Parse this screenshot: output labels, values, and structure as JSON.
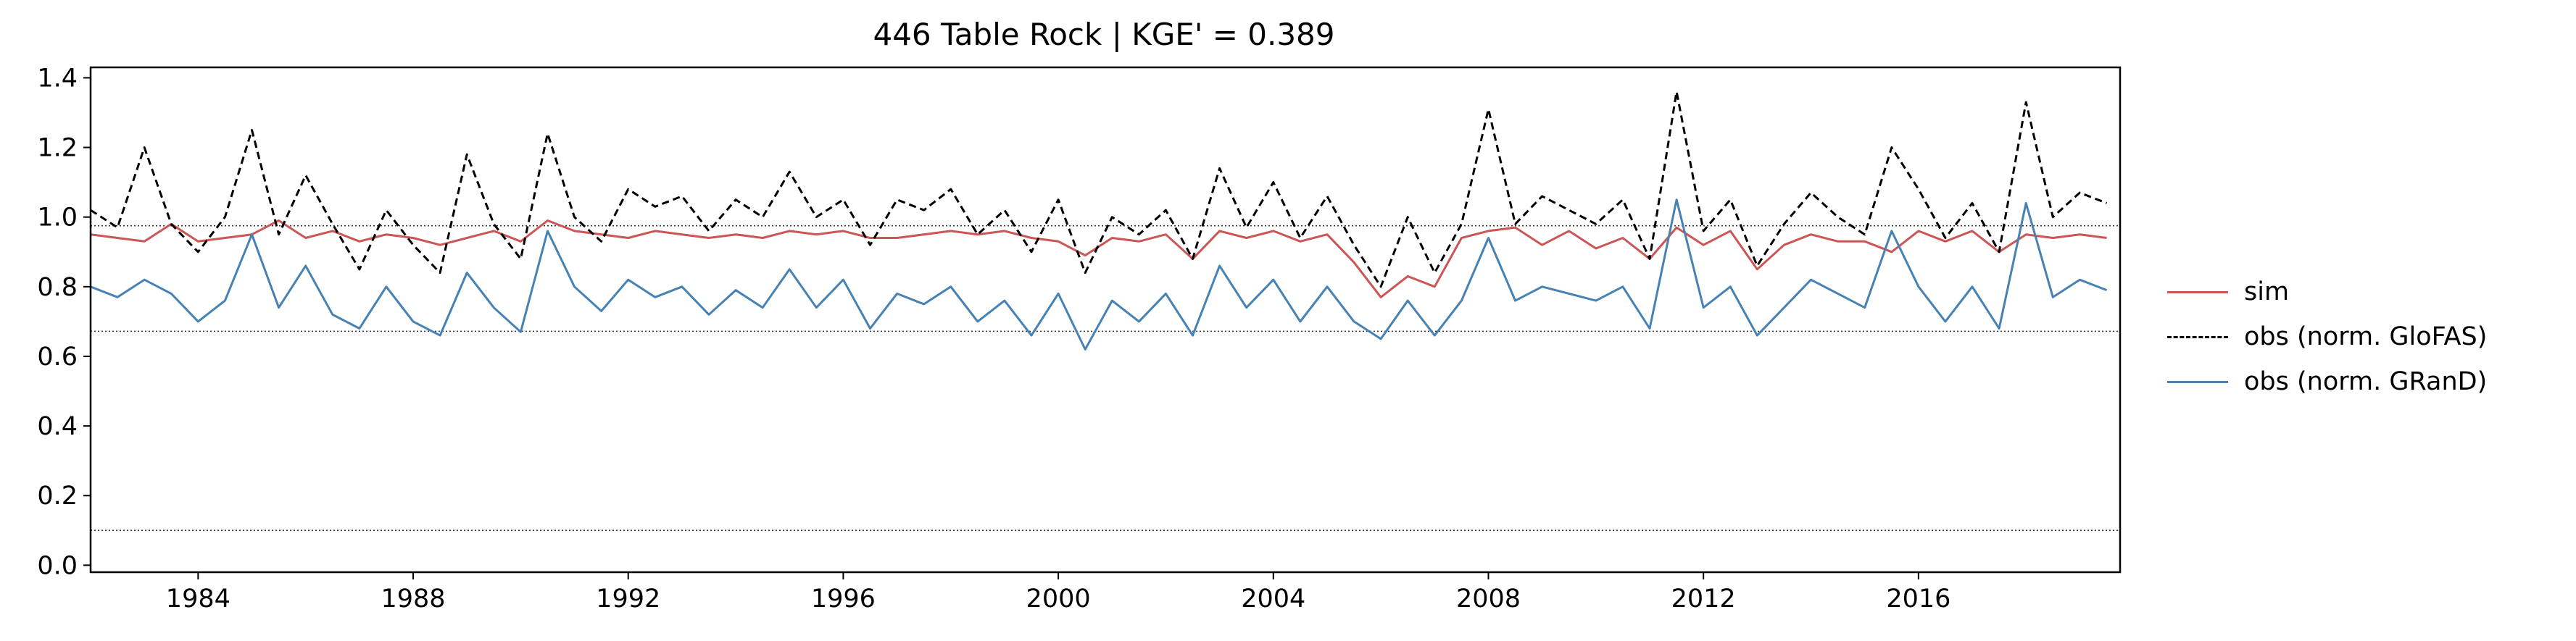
{
  "chart_data": {
    "type": "line",
    "title": "446  Table Rock | KGE' = 0.389",
    "xlabel": "",
    "ylabel": "",
    "xlim": [
      1982.0,
      2019.75
    ],
    "ylim": [
      -0.02,
      1.43
    ],
    "x_ticks": [
      "1984",
      "1988",
      "1992",
      "1996",
      "2000",
      "2004",
      "2008",
      "2012",
      "2016"
    ],
    "y_ticks": [
      "0.0",
      "0.2",
      "0.4",
      "0.6",
      "0.8",
      "1.0",
      "1.2",
      "1.4"
    ],
    "grid": false,
    "legend_position": "right, outside plot",
    "reference_lines": [
      0.975,
      0.672,
      0.1
    ],
    "series": [
      {
        "name": "sim",
        "color": "#cc5555",
        "style": "solid",
        "x": [
          1982.0,
          1982.5,
          1983.0,
          1983.5,
          1984.0,
          1984.5,
          1985.0,
          1985.5,
          1986.0,
          1986.5,
          1987.0,
          1987.5,
          1988.0,
          1988.5,
          1989.0,
          1989.5,
          1990.0,
          1990.5,
          1991.0,
          1991.5,
          1992.0,
          1992.5,
          1993.0,
          1993.5,
          1994.0,
          1994.5,
          1995.0,
          1995.5,
          1996.0,
          1996.5,
          1997.0,
          1997.5,
          1998.0,
          1998.5,
          1999.0,
          1999.5,
          2000.0,
          2000.5,
          2001.0,
          2001.5,
          2002.0,
          2002.5,
          2003.0,
          2003.5,
          2004.0,
          2004.5,
          2005.0,
          2005.5,
          2006.0,
          2006.5,
          2007.0,
          2007.5,
          2008.0,
          2008.5,
          2009.0,
          2009.5,
          2010.0,
          2010.5,
          2011.0,
          2011.5,
          2012.0,
          2012.5,
          2013.0,
          2013.5,
          2014.0,
          2014.5,
          2015.0,
          2015.5,
          2016.0,
          2016.5,
          2017.0,
          2017.5,
          2018.0,
          2018.5,
          2019.0,
          2019.5
        ],
        "y": [
          0.95,
          0.94,
          0.93,
          0.98,
          0.93,
          0.94,
          0.95,
          0.99,
          0.94,
          0.96,
          0.93,
          0.95,
          0.94,
          0.92,
          0.94,
          0.96,
          0.93,
          0.99,
          0.96,
          0.95,
          0.94,
          0.96,
          0.95,
          0.94,
          0.95,
          0.94,
          0.96,
          0.95,
          0.96,
          0.94,
          0.94,
          0.95,
          0.96,
          0.95,
          0.96,
          0.94,
          0.93,
          0.89,
          0.94,
          0.93,
          0.95,
          0.88,
          0.96,
          0.94,
          0.96,
          0.93,
          0.95,
          0.87,
          0.77,
          0.83,
          0.8,
          0.94,
          0.96,
          0.97,
          0.92,
          0.96,
          0.91,
          0.94,
          0.88,
          0.97,
          0.92,
          0.96,
          0.85,
          0.92,
          0.95,
          0.93,
          0.93,
          0.9,
          0.96,
          0.93,
          0.96,
          0.9,
          0.95,
          0.94,
          0.95,
          0.94
        ]
      },
      {
        "name": "obs (norm. GloFAS)",
        "color": "#000000",
        "style": "dashed",
        "x": [
          1982.0,
          1982.5,
          1983.0,
          1983.5,
          1984.0,
          1984.5,
          1985.0,
          1985.5,
          1986.0,
          1986.5,
          1987.0,
          1987.5,
          1988.0,
          1988.5,
          1989.0,
          1989.5,
          1990.0,
          1990.5,
          1991.0,
          1991.5,
          1992.0,
          1992.5,
          1993.0,
          1993.5,
          1994.0,
          1994.5,
          1995.0,
          1995.5,
          1996.0,
          1996.5,
          1997.0,
          1997.5,
          1998.0,
          1998.5,
          1999.0,
          1999.5,
          2000.0,
          2000.5,
          2001.0,
          2001.5,
          2002.0,
          2002.5,
          2003.0,
          2003.5,
          2004.0,
          2004.5,
          2005.0,
          2005.5,
          2006.0,
          2006.5,
          2007.0,
          2007.5,
          2008.0,
          2008.5,
          2009.0,
          2009.5,
          2010.0,
          2010.5,
          2011.0,
          2011.5,
          2012.0,
          2012.5,
          2013.0,
          2013.5,
          2014.0,
          2014.5,
          2015.0,
          2015.5,
          2016.0,
          2016.5,
          2017.0,
          2017.5,
          2018.0,
          2018.5,
          2019.0,
          2019.5
        ],
        "y": [
          1.02,
          0.97,
          1.2,
          0.98,
          0.9,
          1.0,
          1.25,
          0.95,
          1.12,
          0.98,
          0.85,
          1.02,
          0.92,
          0.84,
          1.18,
          0.98,
          0.88,
          1.24,
          1.0,
          0.93,
          1.08,
          1.03,
          1.06,
          0.96,
          1.05,
          1.0,
          1.13,
          1.0,
          1.05,
          0.92,
          1.05,
          1.02,
          1.08,
          0.95,
          1.02,
          0.9,
          1.05,
          0.84,
          1.0,
          0.95,
          1.02,
          0.88,
          1.14,
          0.97,
          1.1,
          0.94,
          1.06,
          0.92,
          0.8,
          1.0,
          0.84,
          0.98,
          1.31,
          0.98,
          1.06,
          1.02,
          0.98,
          1.05,
          0.88,
          1.36,
          0.96,
          1.05,
          0.86,
          0.98,
          1.07,
          1.0,
          0.95,
          1.2,
          1.08,
          0.94,
          1.04,
          0.9,
          1.33,
          1.0,
          1.07,
          1.04
        ]
      },
      {
        "name": "obs (norm. GRanD)",
        "color": "#4682b4",
        "style": "solid",
        "x": [
          1982.0,
          1982.5,
          1983.0,
          1983.5,
          1984.0,
          1984.5,
          1985.0,
          1985.5,
          1986.0,
          1986.5,
          1987.0,
          1987.5,
          1988.0,
          1988.5,
          1989.0,
          1989.5,
          1990.0,
          1990.5,
          1991.0,
          1991.5,
          1992.0,
          1992.5,
          1993.0,
          1993.5,
          1994.0,
          1994.5,
          1995.0,
          1995.5,
          1996.0,
          1996.5,
          1997.0,
          1997.5,
          1998.0,
          1998.5,
          1999.0,
          1999.5,
          2000.0,
          2000.5,
          2001.0,
          2001.5,
          2002.0,
          2002.5,
          2003.0,
          2003.5,
          2004.0,
          2004.5,
          2005.0,
          2005.5,
          2006.0,
          2006.5,
          2007.0,
          2007.5,
          2008.0,
          2008.5,
          2009.0,
          2009.5,
          2010.0,
          2010.5,
          2011.0,
          2011.5,
          2012.0,
          2012.5,
          2013.0,
          2013.5,
          2014.0,
          2014.5,
          2015.0,
          2015.5,
          2016.0,
          2016.5,
          2017.0,
          2017.5,
          2018.0,
          2018.5,
          2019.0,
          2019.5
        ],
        "y": [
          0.8,
          0.77,
          0.82,
          0.78,
          0.7,
          0.76,
          0.95,
          0.74,
          0.86,
          0.72,
          0.68,
          0.8,
          0.7,
          0.66,
          0.84,
          0.74,
          0.67,
          0.96,
          0.8,
          0.73,
          0.82,
          0.77,
          0.8,
          0.72,
          0.79,
          0.74,
          0.85,
          0.74,
          0.82,
          0.68,
          0.78,
          0.75,
          0.8,
          0.7,
          0.76,
          0.66,
          0.78,
          0.62,
          0.76,
          0.7,
          0.78,
          0.66,
          0.86,
          0.74,
          0.82,
          0.7,
          0.8,
          0.7,
          0.65,
          0.76,
          0.66,
          0.76,
          0.94,
          0.76,
          0.8,
          0.78,
          0.76,
          0.8,
          0.68,
          1.05,
          0.74,
          0.8,
          0.66,
          0.74,
          0.82,
          0.78,
          0.74,
          0.96,
          0.8,
          0.7,
          0.8,
          0.68,
          1.04,
          0.77,
          0.82,
          0.79
        ]
      }
    ]
  }
}
